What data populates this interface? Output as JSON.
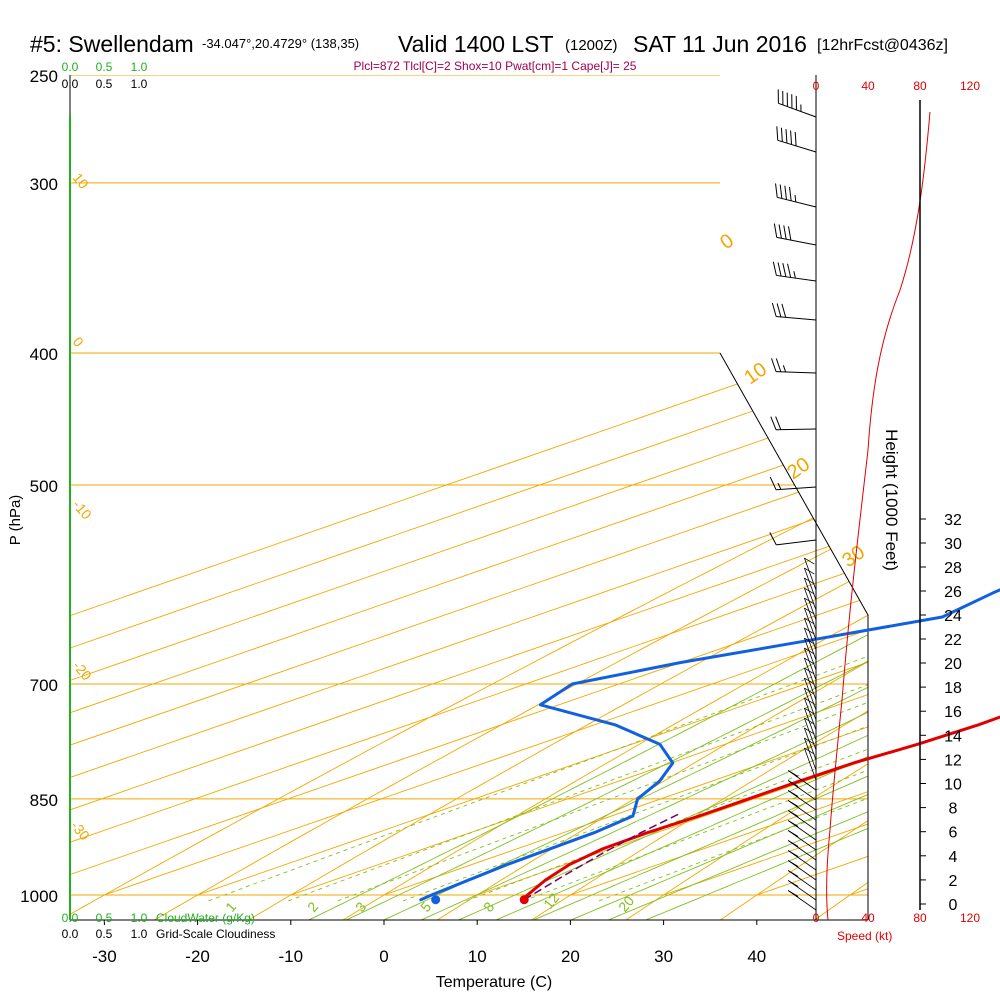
{
  "header": {
    "station": "#5: Swellendam",
    "coords": "-34.047°,20.4729° (138,35)",
    "valid": "Valid 1400 LST",
    "zulu": "(1200Z)",
    "date": "SAT 11 Jun 2016",
    "forecast": "[12hrFcst@0436z]",
    "indices": "Plcl=872 Tlcl[C]=2 Shox=10 Pwat[cm]=1 Cape[J]= 25"
  },
  "colors": {
    "temperature": "#e00000",
    "dewpoint": "#1060e0",
    "isotherm": "#f0a800",
    "dry_adiabat": "#f0a800",
    "moist_adiabat": "#80c020",
    "mixing_ratio": "#80c020",
    "cloud_green": "#20b020",
    "indices": "#a00050",
    "wind_scale": "#e00000"
  },
  "chart_data": {
    "type": "line",
    "title": "Skew-T sounding",
    "xlabel": "Temperature (C)",
    "ylabel": "P (hPa)",
    "x_ticks": [
      "-30",
      "-20",
      "-10",
      "0",
      "10",
      "20",
      "30",
      "40"
    ],
    "x_tick_values": [
      -30,
      -20,
      -10,
      0,
      10,
      20,
      30,
      40
    ],
    "pressure_levels": [
      250,
      300,
      400,
      500,
      700,
      850,
      1000
    ],
    "pressure_labels": [
      "250",
      "300",
      "400",
      "500",
      "700",
      "850",
      "1000"
    ],
    "series": [
      {
        "name": "Temperature",
        "points": [
          [
            1008,
            16.3
          ],
          [
            1000,
            15.4
          ],
          [
            975,
            12.7
          ],
          [
            950,
            10.5
          ],
          [
            925,
            9.2
          ],
          [
            900,
            9.0
          ],
          [
            875,
            9.4
          ],
          [
            850,
            9.4
          ],
          [
            825,
            9.4
          ],
          [
            800,
            9.6
          ],
          [
            775,
            10.7
          ],
          [
            750,
            11.2
          ],
          [
            725,
            11.0
          ],
          [
            700,
            9.2
          ],
          [
            650,
            5.2
          ],
          [
            600,
            1.2
          ],
          [
            550,
            -3.0
          ],
          [
            500,
            -7.2
          ],
          [
            450,
            -10.7
          ],
          [
            400,
            -15.9
          ],
          [
            375,
            -19.0
          ],
          [
            350,
            -22.4
          ],
          [
            325,
            -26.2
          ],
          [
            300,
            -31.0
          ],
          [
            275,
            -37.0
          ],
          [
            260,
            -41.0
          ]
        ]
      },
      {
        "name": "Dewpoint",
        "points": [
          [
            1008,
            5.4
          ],
          [
            1000,
            5.1
          ],
          [
            950,
            3.8
          ],
          [
            900,
            3.3
          ],
          [
            875,
            2.3
          ],
          [
            850,
            -2.5
          ],
          [
            825,
            -5.6
          ],
          [
            800,
            -9.8
          ],
          [
            775,
            -17.0
          ],
          [
            750,
            -27.8
          ],
          [
            725,
            -42.0
          ],
          [
            700,
            -45.0
          ],
          [
            675,
            -40.0
          ],
          [
            650,
            -33.0
          ],
          [
            625,
            -26.0
          ],
          [
            600,
            -28.0
          ],
          [
            550,
            -31.0
          ],
          [
            500,
            -43.0
          ],
          [
            450,
            -31.0
          ],
          [
            400,
            -20.0
          ],
          [
            375,
            -20.0
          ],
          [
            350,
            -23.0
          ],
          [
            325,
            -29.0
          ],
          [
            300,
            -35.5
          ],
          [
            275,
            -42.0
          ],
          [
            260,
            -47.0
          ]
        ]
      }
    ],
    "surface_markers": [
      {
        "name": "surface-temperature",
        "temp_c": 16.5,
        "pressure_hpa": 1008
      },
      {
        "name": "surface-dewpoint",
        "temp_c": 7.0,
        "pressure_hpa": 1008
      }
    ],
    "mixing_ratio_labels": [
      "1",
      "2",
      "3",
      "5",
      "8",
      "12",
      "20"
    ],
    "mixing_ratio_values": [
      1,
      2,
      3,
      5,
      8,
      12,
      20
    ],
    "isotherm_labels": [
      "10",
      "0",
      "-10",
      "-20",
      "-30"
    ],
    "moist_adiabat_labels": [
      "0",
      "10",
      "20",
      "30"
    ],
    "height_axis": {
      "label": "Height (1000 Feet)",
      "ticks": [
        "0",
        "2",
        "4",
        "6",
        "8",
        "10",
        "12",
        "14",
        "16",
        "18",
        "20",
        "22",
        "24",
        "26",
        "28",
        "30",
        "32"
      ]
    },
    "wind_speed_axis": {
      "label": "Speed (kt)",
      "ticks": [
        "0",
        "40",
        "80",
        "120"
      ]
    },
    "cloud_water_axis": {
      "label": "CloudWater (g/Kg)",
      "ticks": [
        "0.0",
        "0.5",
        "1.0"
      ]
    },
    "cloudiness_axis": {
      "label": "Grid-Scale Cloudiness",
      "ticks": [
        "0.0",
        "0.5",
        "1.0"
      ]
    }
  }
}
